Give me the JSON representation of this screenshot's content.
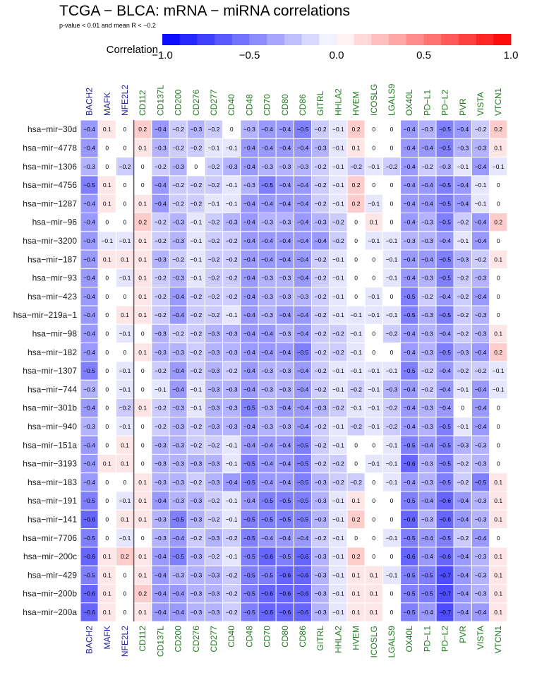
{
  "chart_data": {
    "type": "heatmap",
    "title": "TCGA − BLCA: mRNA − miRNA correlations",
    "subtitle": "p-value < 0.01 and mean R < −0.2",
    "legend": {
      "title": "Correlation",
      "range": [
        -1.0,
        1.0
      ],
      "ticks": [
        -1.0,
        -0.5,
        0.0,
        0.5,
        1.0
      ],
      "tick_labels": [
        "−1.0",
        "−0.5",
        "0.0",
        "0.5",
        "1.0"
      ],
      "low_color": "#0000ff",
      "mid_color": "#ffffff",
      "high_color": "#ff0000",
      "position": "top"
    },
    "columns": [
      "BACH2",
      "MAFK",
      "NFE2L2",
      "CD112",
      "CD137L",
      "CD200",
      "CD276",
      "CD277",
      "CD40",
      "CD48",
      "CD70",
      "CD80",
      "CD86",
      "GITRL",
      "HHLA2",
      "HVEM",
      "ICOSLG",
      "LGALS9",
      "OX40L",
      "PD−L1",
      "PD−L2",
      "PVR",
      "VISTA",
      "VTCN1"
    ],
    "column_groups": [
      {
        "columns": [
          "BACH2",
          "MAFK",
          "NFE2L2"
        ],
        "color": "#1f1f9f"
      },
      {
        "columns": [
          "CD112",
          "CD137L",
          "CD200",
          "CD276",
          "CD277",
          "CD40",
          "CD48",
          "CD70",
          "CD80",
          "CD86",
          "GITRL",
          "HHLA2",
          "HVEM",
          "ICOSLG",
          "LGALS9",
          "OX40L",
          "PD−L1",
          "PD−L2",
          "PVR",
          "VISTA",
          "VTCN1"
        ],
        "color": "#1f7a1f"
      }
    ],
    "group_divider_after_column": 2,
    "rows": [
      "hsa−mir−30d",
      "hsa−mir−4778",
      "hsa−mir−1306",
      "hsa−mir−4756",
      "hsa−mir−1287",
      "hsa−mir−96",
      "hsa−mir−3200",
      "hsa−mir−187",
      "hsa−mir−93",
      "hsa−mir−423",
      "hsa−mir−219a−1",
      "hsa−mir−98",
      "hsa−mir−182",
      "hsa−mir−1307",
      "hsa−mir−744",
      "hsa−mir−301b",
      "hsa−mir−940",
      "hsa−mir−151a",
      "hsa−mir−3193",
      "hsa−mir−183",
      "hsa−mir−191",
      "hsa−mir−141",
      "hsa−mir−7706",
      "hsa−mir−200c",
      "hsa−mir−429",
      "hsa−mir−200b",
      "hsa−mir−200a"
    ],
    "values": [
      [
        -0.4,
        0.1,
        0,
        0.2,
        -0.4,
        -0.2,
        -0.3,
        -0.2,
        0,
        -0.3,
        -0.4,
        -0.4,
        -0.5,
        -0.2,
        -0.1,
        0.2,
        0,
        0,
        -0.4,
        -0.3,
        -0.5,
        -0.4,
        -0.2,
        0.2
      ],
      [
        -0.4,
        0,
        0,
        0.1,
        -0.3,
        -0.2,
        -0.2,
        -0.1,
        -0.1,
        -0.4,
        -0.4,
        -0.4,
        -0.4,
        -0.3,
        -0.1,
        0.1,
        0,
        0,
        -0.4,
        -0.4,
        -0.5,
        -0.3,
        -0.3,
        0.1
      ],
      [
        -0.3,
        0,
        -0.2,
        0,
        -0.2,
        -0.3,
        0,
        -0.2,
        -0.3,
        -0.4,
        -0.3,
        -0.3,
        -0.3,
        -0.2,
        -0.1,
        -0.2,
        -0.1,
        -0.2,
        -0.4,
        -0.2,
        -0.3,
        -0.1,
        -0.4,
        -0.1
      ],
      [
        -0.5,
        0.1,
        0,
        0,
        -0.4,
        -0.2,
        -0.2,
        -0.2,
        -0.1,
        -0.3,
        -0.5,
        -0.4,
        -0.4,
        -0.2,
        -0.1,
        0.2,
        0,
        0,
        -0.4,
        -0.4,
        -0.5,
        -0.4,
        -0.1,
        0
      ],
      [
        -0.4,
        0.1,
        0,
        0.1,
        -0.4,
        -0.2,
        -0.2,
        -0.1,
        -0.1,
        -0.4,
        -0.4,
        -0.4,
        -0.4,
        -0.2,
        -0.1,
        0.2,
        -0.1,
        0,
        -0.4,
        -0.4,
        -0.5,
        -0.4,
        -0.1,
        0
      ],
      [
        -0.4,
        0,
        0,
        0.2,
        -0.2,
        -0.3,
        -0.1,
        -0.2,
        -0.3,
        -0.4,
        -0.3,
        -0.3,
        -0.4,
        -0.3,
        -0.2,
        0,
        0.1,
        0,
        -0.4,
        -0.3,
        -0.5,
        -0.2,
        -0.4,
        0.2
      ],
      [
        -0.4,
        -0.1,
        -0.1,
        0.1,
        -0.2,
        -0.3,
        -0.1,
        -0.2,
        -0.2,
        -0.4,
        -0.4,
        -0.4,
        -0.4,
        -0.4,
        -0.2,
        0,
        -0.1,
        -0.1,
        -0.3,
        -0.3,
        -0.4,
        -0.1,
        -0.4,
        0
      ],
      [
        -0.4,
        0.1,
        0.1,
        0.1,
        -0.3,
        -0.2,
        -0.1,
        -0.2,
        -0.2,
        -0.4,
        -0.4,
        -0.4,
        -0.4,
        -0.2,
        -0.1,
        0,
        0,
        -0.1,
        -0.4,
        -0.4,
        -0.5,
        -0.3,
        -0.2,
        0.1
      ],
      [
        -0.4,
        0,
        -0.1,
        0.1,
        -0.2,
        -0.3,
        -0.1,
        -0.2,
        -0.2,
        -0.4,
        -0.3,
        -0.3,
        -0.4,
        -0.2,
        -0.1,
        0,
        0,
        -0.1,
        -0.4,
        -0.3,
        -0.5,
        -0.2,
        -0.3,
        0
      ],
      [
        -0.4,
        0,
        0,
        0.1,
        -0.2,
        -0.4,
        -0.2,
        -0.2,
        -0.2,
        -0.4,
        -0.3,
        -0.3,
        -0.3,
        -0.2,
        -0.1,
        0,
        -0.1,
        0,
        -0.5,
        -0.2,
        -0.4,
        -0.2,
        -0.4,
        0
      ],
      [
        -0.4,
        0,
        0.1,
        0.1,
        -0.2,
        -0.4,
        -0.2,
        -0.2,
        -0.1,
        -0.4,
        -0.3,
        -0.4,
        -0.4,
        -0.2,
        -0.1,
        -0.1,
        -0.1,
        -0.1,
        -0.5,
        -0.3,
        -0.5,
        -0.2,
        -0.3,
        0
      ],
      [
        -0.4,
        0,
        -0.1,
        0,
        -0.3,
        -0.2,
        -0.2,
        -0.3,
        -0.3,
        -0.4,
        -0.4,
        -0.3,
        -0.4,
        -0.2,
        -0.2,
        -0.1,
        0,
        -0.2,
        -0.4,
        -0.3,
        -0.4,
        -0.2,
        -0.3,
        0.1
      ],
      [
        -0.4,
        0,
        0,
        0.1,
        -0.3,
        -0.3,
        -0.2,
        -0.3,
        -0.3,
        -0.4,
        -0.4,
        -0.4,
        -0.5,
        -0.2,
        -0.2,
        -0.1,
        0,
        0,
        -0.4,
        -0.3,
        -0.5,
        -0.3,
        -0.4,
        0.2
      ],
      [
        -0.5,
        0,
        -0.1,
        0,
        -0.2,
        -0.4,
        -0.2,
        -0.3,
        -0.2,
        -0.4,
        -0.3,
        -0.3,
        -0.4,
        -0.2,
        -0.1,
        -0.1,
        -0.1,
        -0.1,
        -0.5,
        -0.2,
        -0.4,
        -0.2,
        -0.2,
        -0.1
      ],
      [
        -0.3,
        0,
        -0.1,
        0,
        -0.1,
        -0.4,
        -0.1,
        -0.3,
        -0.3,
        -0.4,
        -0.3,
        -0.3,
        -0.4,
        -0.2,
        -0.1,
        -0.2,
        -0.1,
        -0.3,
        -0.4,
        -0.2,
        -0.4,
        -0.1,
        -0.4,
        -0.1
      ],
      [
        -0.4,
        0,
        -0.2,
        0.1,
        -0.2,
        -0.3,
        -0.1,
        -0.3,
        -0.3,
        -0.5,
        -0.3,
        -0.4,
        -0.4,
        -0.3,
        -0.2,
        -0.1,
        -0.1,
        -0.2,
        -0.4,
        -0.3,
        -0.4,
        0,
        -0.4,
        0
      ],
      [
        -0.3,
        0,
        -0.1,
        0,
        -0.2,
        -0.3,
        -0.2,
        -0.3,
        -0.3,
        -0.4,
        -0.3,
        -0.3,
        -0.4,
        -0.2,
        -0.1,
        -0.2,
        -0.1,
        -0.2,
        -0.4,
        -0.3,
        -0.5,
        -0.1,
        -0.4,
        0
      ],
      [
        -0.4,
        0,
        0.1,
        0,
        -0.3,
        -0.3,
        -0.2,
        -0.2,
        -0.1,
        -0.4,
        -0.4,
        -0.4,
        -0.5,
        -0.2,
        -0.1,
        0,
        0,
        -0.1,
        -0.5,
        -0.4,
        -0.5,
        -0.3,
        -0.3,
        0
      ],
      [
        -0.4,
        0.1,
        0.1,
        0,
        -0.3,
        -0.3,
        -0.3,
        -0.3,
        -0.1,
        -0.5,
        -0.4,
        -0.4,
        -0.5,
        -0.2,
        -0.2,
        0,
        -0.1,
        -0.1,
        -0.6,
        -0.3,
        -0.5,
        -0.2,
        -0.3,
        0
      ],
      [
        -0.4,
        0,
        0,
        0.1,
        -0.3,
        -0.3,
        -0.2,
        -0.3,
        -0.4,
        -0.5,
        -0.4,
        -0.4,
        -0.5,
        -0.3,
        -0.2,
        -0.2,
        0,
        -0.1,
        -0.4,
        -0.3,
        -0.5,
        -0.2,
        -0.5,
        0.1
      ],
      [
        -0.5,
        0,
        -0.1,
        0.1,
        -0.4,
        -0.3,
        -0.3,
        -0.2,
        -0.1,
        -0.4,
        -0.5,
        -0.5,
        -0.5,
        -0.3,
        -0.1,
        0.1,
        0,
        0,
        -0.5,
        -0.4,
        -0.6,
        -0.4,
        -0.3,
        0.1
      ],
      [
        -0.6,
        0,
        0.1,
        0.1,
        -0.3,
        -0.5,
        -0.3,
        -0.2,
        -0.1,
        -0.5,
        -0.5,
        -0.5,
        -0.5,
        -0.3,
        -0.1,
        0.2,
        0,
        0,
        -0.6,
        -0.3,
        -0.6,
        -0.4,
        -0.3,
        0.1
      ],
      [
        -0.5,
        0,
        -0.1,
        0,
        -0.3,
        -0.4,
        -0.2,
        -0.3,
        -0.2,
        -0.5,
        -0.4,
        -0.4,
        -0.4,
        -0.2,
        -0.1,
        0,
        0,
        -0.1,
        -0.5,
        -0.4,
        -0.5,
        -0.2,
        -0.4,
        0
      ],
      [
        -0.6,
        0.1,
        0.2,
        0.1,
        -0.4,
        -0.5,
        -0.3,
        -0.2,
        -0.1,
        -0.5,
        -0.6,
        -0.5,
        -0.6,
        -0.3,
        -0.1,
        0.2,
        0,
        0,
        -0.6,
        -0.4,
        -0.6,
        -0.4,
        -0.3,
        0.1
      ],
      [
        -0.5,
        0.1,
        0,
        0.1,
        -0.4,
        -0.3,
        -0.3,
        -0.3,
        -0.2,
        -0.5,
        -0.5,
        -0.6,
        -0.6,
        -0.3,
        -0.1,
        0.1,
        0.1,
        -0.1,
        -0.5,
        -0.5,
        -0.7,
        -0.4,
        -0.3,
        0.1
      ],
      [
        -0.6,
        0.1,
        0,
        0.2,
        -0.4,
        -0.4,
        -0.3,
        -0.3,
        -0.2,
        -0.5,
        -0.6,
        -0.6,
        -0.6,
        -0.3,
        -0.1,
        0.1,
        0.1,
        0,
        -0.5,
        -0.5,
        -0.7,
        -0.4,
        -0.3,
        0.1
      ],
      [
        -0.6,
        0.1,
        0,
        0.1,
        -0.4,
        -0.4,
        -0.3,
        -0.3,
        -0.2,
        -0.5,
        -0.6,
        -0.6,
        -0.6,
        -0.3,
        -0.1,
        0.1,
        0.1,
        0,
        -0.5,
        -0.4,
        -0.7,
        -0.4,
        -0.4,
        0.1
      ]
    ]
  }
}
